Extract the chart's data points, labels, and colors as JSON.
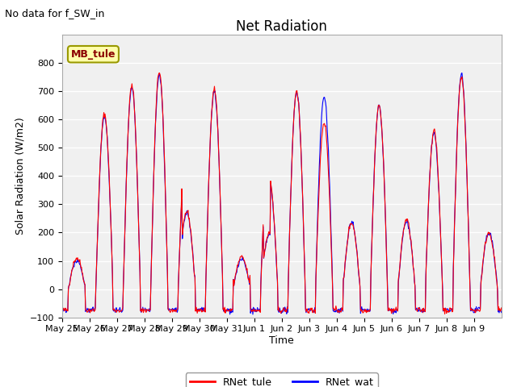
{
  "title": "Net Radiation",
  "subtitle": "No data for f_SW_in",
  "ylabel": "Solar Radiation (W/m2)",
  "xlabel": "Time",
  "ylim": [
    -100,
    900
  ],
  "yticks": [
    -100,
    0,
    100,
    200,
    300,
    400,
    500,
    600,
    700,
    800
  ],
  "legend_labels": [
    "RNet_tule",
    "RNet_wat"
  ],
  "site_label": "MB_tule",
  "fig_bg_color": "#ffffff",
  "plot_bg_color": "#f0f0f0",
  "x_tick_labels": [
    "May 25",
    "May 26",
    "May 27",
    "May 28",
    "May 29",
    "May 30",
    "May 31",
    "Jun 1",
    "Jun 2",
    "Jun 3",
    "Jun 4",
    "Jun 5",
    "Jun 6",
    "Jun 7",
    "Jun 8",
    "Jun 9"
  ],
  "num_days": 16,
  "points_per_day": 48
}
